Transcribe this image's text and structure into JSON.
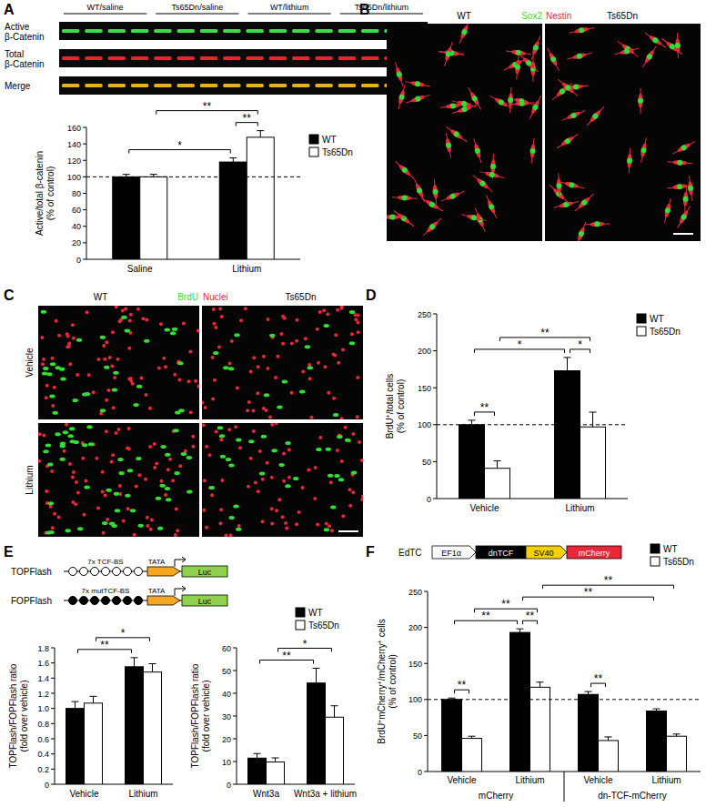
{
  "chart_data": [
    {
      "type": "bar",
      "panel": "A",
      "y_label": [
        "Active/total β-catenin",
        "(% of control)"
      ],
      "categories": [
        "Saline",
        "Lithium"
      ],
      "series": [
        {
          "name": "WT",
          "color": "#000000",
          "values": [
            100,
            118
          ],
          "errors": [
            3,
            5
          ]
        },
        {
          "name": "Ts65Dn",
          "color": "#ffffff",
          "values": [
            100,
            148
          ],
          "errors": [
            3,
            8
          ]
        }
      ],
      "ylim": [
        0,
        160
      ],
      "yticks": [
        0,
        20,
        40,
        60,
        80,
        100,
        120,
        140,
        160
      ],
      "legend": "upper right",
      "reference_lines": [
        100
      ],
      "annotations": [
        {
          "text": "*",
          "between": [
            [
              0,
              0
            ],
            [
              1,
              0
            ]
          ]
        },
        {
          "text": "**",
          "between": [
            [
              0,
              1
            ],
            [
              1,
              1
            ]
          ]
        },
        {
          "text": "**",
          "between": [
            [
              1,
              0
            ],
            [
              1,
              1
            ]
          ]
        }
      ]
    },
    {
      "type": "bar",
      "panel": "D",
      "y_label": [
        "BrdU+/total cells",
        "(% of control)"
      ],
      "categories": [
        "Vehicle",
        "Lithium"
      ],
      "series": [
        {
          "name": "WT",
          "color": "#000000",
          "values": [
            100,
            173
          ],
          "errors": [
            6,
            18
          ]
        },
        {
          "name": "Ts65Dn",
          "color": "#ffffff",
          "values": [
            41,
            97
          ],
          "errors": [
            10,
            20
          ]
        }
      ],
      "ylim": [
        0,
        250
      ],
      "yticks": [
        0,
        50,
        100,
        150,
        200,
        250
      ],
      "legend": "upper right",
      "reference_lines": [
        100
      ],
      "annotations": [
        {
          "text": "**",
          "between": [
            [
              0,
              0
            ],
            [
              0,
              1
            ]
          ]
        },
        {
          "text": "*",
          "between": [
            [
              0,
              0
            ],
            [
              1,
              0
            ]
          ]
        },
        {
          "text": "**",
          "between": [
            [
              0,
              1
            ],
            [
              1,
              1
            ]
          ]
        },
        {
          "text": "*",
          "between": [
            [
              1,
              0
            ],
            [
              1,
              1
            ]
          ]
        }
      ]
    },
    {
      "type": "bar",
      "y_label": [
        "TOPFlash/FOPFlash ratio",
        "(fold over vehicle)"
      ],
      "categories": [
        "Vehicle",
        "Lithium"
      ],
      "series": [
        {
          "name": "WT",
          "color": "#000000",
          "values": [
            1.0,
            1.55
          ],
          "errors": [
            0.09,
            0.12
          ]
        },
        {
          "name": "Ts65Dn",
          "color": "#ffffff",
          "values": [
            1.07,
            1.48
          ],
          "errors": [
            0.09,
            0.11
          ]
        }
      ],
      "ylim": [
        0,
        1.8
      ],
      "yticks": [
        0,
        0.2,
        0.4,
        0.6,
        0.8,
        {
          "value": 1,
          "label": "1.0"
        },
        1.2,
        1.4,
        1.6,
        1.8
      ],
      "annotations": [
        {
          "text": "**",
          "between": [
            [
              0,
              0
            ],
            [
              1,
              0
            ]
          ]
        },
        {
          "text": "*",
          "between": [
            [
              0,
              1
            ],
            [
              1,
              1
            ]
          ]
        }
      ]
    },
    {
      "type": "bar",
      "y_label": [
        "TOPFlash/FOPFlash ratio",
        "(fold over vehicle)"
      ],
      "categories": [
        "Wnt3a",
        "Wnt3a + lithium"
      ],
      "series": [
        {
          "name": "WT",
          "color": "#000000",
          "values": [
            11.5,
            44.5
          ],
          "errors": [
            2,
            6.5
          ]
        },
        {
          "name": "Ts65Dn",
          "color": "#ffffff",
          "values": [
            9.8,
            29.5
          ],
          "errors": [
            1.8,
            5
          ]
        }
      ],
      "ylim": [
        0,
        60
      ],
      "yticks": [
        0,
        10,
        20,
        30,
        40,
        50,
        60
      ],
      "legend": "upper right",
      "annotations": [
        {
          "text": "**",
          "between": [
            [
              0,
              0
            ],
            [
              1,
              0
            ]
          ]
        },
        {
          "text": "*",
          "between": [
            [
              0,
              1
            ],
            [
              1,
              1
            ]
          ]
        }
      ]
    },
    {
      "type": "bar",
      "y_label": [
        "BrdU+mCherry+/mCherry+ cells",
        "(% of control)"
      ],
      "categories": [
        "Vehicle",
        "Lithium",
        "Vehicle",
        "Lithium"
      ],
      "groups": [
        {
          "label": "mCherry",
          "span": [
            0,
            1
          ]
        },
        {
          "label": "dn-TCF-mCherry",
          "span": [
            2,
            3
          ]
        }
      ],
      "series": [
        {
          "name": "WT",
          "color": "#000000",
          "values": [
            100,
            193,
            107,
            84
          ],
          "errors": [
            2,
            5,
            4,
            3
          ]
        },
        {
          "name": "Ts65Dn",
          "color": "#ffffff",
          "values": [
            46,
            117,
            43,
            49
          ],
          "errors": [
            3,
            7,
            5,
            3
          ]
        }
      ],
      "ylim": [
        0,
        250
      ],
      "yticks": [
        0,
        50,
        100,
        150,
        200,
        250
      ],
      "legend": "upper right",
      "reference_lines": [
        100
      ],
      "annotations": [
        {
          "text": "**",
          "between": [
            [
              0,
              0
            ],
            [
              0,
              1
            ]
          ]
        },
        {
          "text": "**",
          "between": [
            [
              1,
              0
            ],
            [
              1,
              1
            ]
          ]
        },
        {
          "text": "**",
          "between": [
            [
              2,
              0
            ],
            [
              2,
              1
            ]
          ]
        },
        {
          "text": "**",
          "between": [
            [
              0,
              0
            ],
            [
              1,
              0
            ]
          ]
        },
        {
          "text": "**",
          "between": [
            [
              0,
              1
            ],
            [
              1,
              1
            ]
          ]
        },
        {
          "text": "**",
          "between": [
            [
              1,
              0
            ],
            [
              3,
              0
            ]
          ]
        },
        {
          "text": "**",
          "between": [
            [
              1,
              1
            ],
            [
              3,
              1
            ]
          ]
        }
      ]
    }
  ],
  "figure": {
    "blot": {
      "columns": [
        "WT/saline",
        "Ts65Dn/saline",
        "WT/lithium",
        "Ts65Dn/lithium"
      ],
      "rows": [
        {
          "lines": [
            "Active",
            "β-Catenin"
          ],
          "color": "#3fdc4a"
        },
        {
          "lines": [
            "Total",
            "β-Catenin"
          ],
          "color": "#e8262a"
        },
        {
          "lines": [
            "Merge"
          ],
          "color": "#e6b21e"
        }
      ]
    },
    "panel_b": {
      "panel": "B",
      "images": [
        "WT",
        "Ts65Dn"
      ],
      "stains": [
        {
          "text": "Sox2",
          "color": "#33dd33"
        },
        {
          "text": "Nestin",
          "color": "#e8283a"
        }
      ]
    },
    "panel_c": {
      "panel": "C",
      "columns": [
        "WT",
        "Ts65Dn"
      ],
      "rows": [
        "Vehicle",
        "Lithium"
      ],
      "stains": [
        {
          "text": "BrdU",
          "color": "#33dd33"
        },
        {
          "text": "Nuclei",
          "color": "#e8283a"
        }
      ]
    },
    "reporters": {
      "panel": "E",
      "constructs": [
        {
          "name": "TOPFlash",
          "sites_label": "7x TCF-BS",
          "site_count": 7,
          "mutant": false,
          "promoter": "TATA",
          "reporter": "Luc",
          "reporter_color": "#8fd14f"
        },
        {
          "name": "FOPFlash",
          "sites_label": "7x mutTCF-BS",
          "site_count": 7,
          "mutant": true,
          "promoter": "TATA",
          "reporter": "Luc",
          "reporter_color": "#8fd14f"
        }
      ]
    },
    "vector": {
      "panel": "F",
      "name": "EdTC",
      "elements": [
        {
          "text": "EF1α",
          "color": "#ffffff",
          "shape": "arrow"
        },
        {
          "text": "dnTCF",
          "color": "#000000",
          "shape": "box"
        },
        {
          "text": "SV40",
          "color": "#f5d000",
          "shape": "arrow"
        },
        {
          "text": "mCherry",
          "color": "#e8283a",
          "shape": "box"
        }
      ]
    }
  }
}
